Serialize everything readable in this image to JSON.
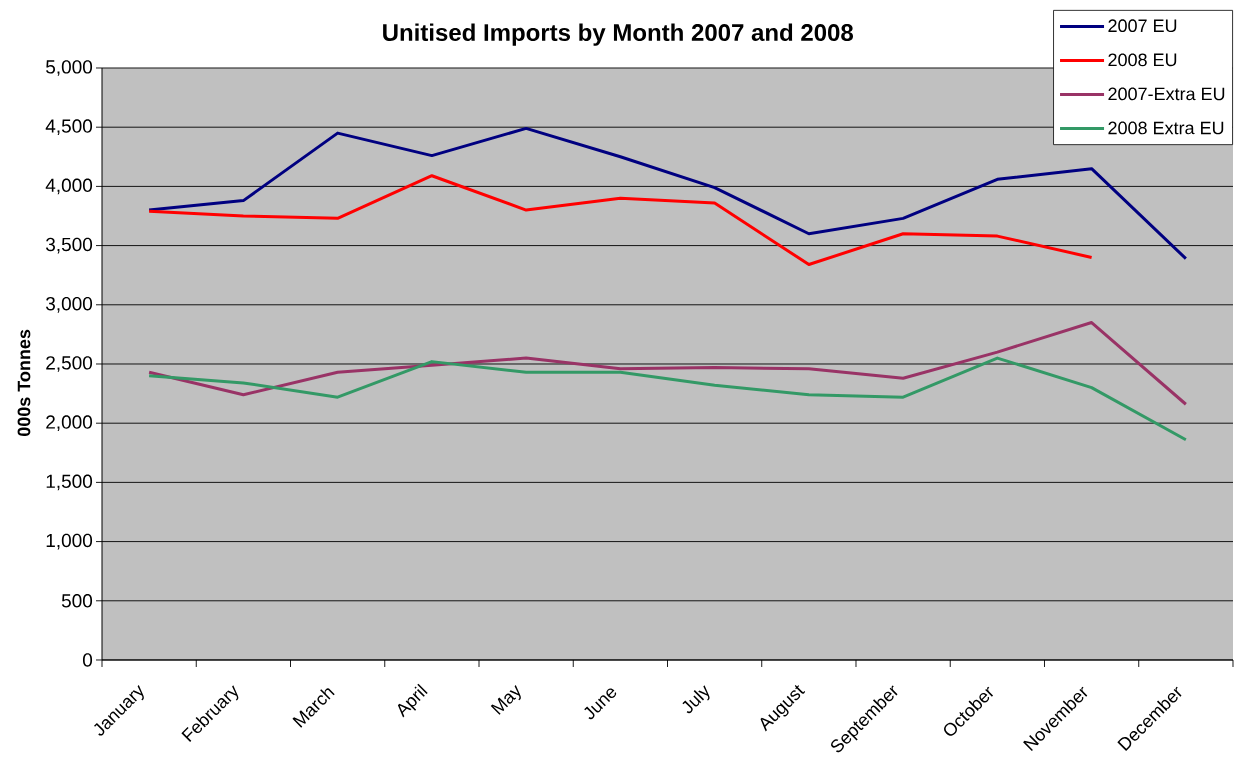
{
  "chart_data": {
    "type": "line",
    "title": "Unitised Imports by Month 2007 and 2008",
    "ylabel": "000s Tonnes",
    "categories": [
      "January",
      "February",
      "March",
      "April",
      "May",
      "June",
      "July",
      "August",
      "September",
      "October",
      "November",
      "December"
    ],
    "series": [
      {
        "name": "2007 EU",
        "color": "#000080",
        "values": [
          3800,
          3880,
          4450,
          4260,
          4490,
          4250,
          3990,
          3600,
          3730,
          4060,
          4150,
          3390
        ]
      },
      {
        "name": "2008 EU",
        "color": "#ff0000",
        "values": [
          3790,
          3750,
          3730,
          4090,
          3800,
          3900,
          3860,
          3340,
          3600,
          3580,
          3400,
          null
        ]
      },
      {
        "name": "2007-Extra EU",
        "color": "#993366",
        "values": [
          2430,
          2240,
          2430,
          2490,
          2550,
          2460,
          2470,
          2460,
          2380,
          2600,
          2850,
          2160
        ]
      },
      {
        "name": "2008 Extra EU",
        "color": "#339966",
        "values": [
          2400,
          2340,
          2220,
          2520,
          2430,
          2430,
          2320,
          2240,
          2220,
          2550,
          2300,
          1860
        ]
      }
    ],
    "ylim": [
      0,
      5000
    ],
    "yticks": [
      0,
      500,
      {
        "value": 1000,
        "label": "1,000"
      },
      {
        "value": 1500,
        "label": "1,500"
      },
      {
        "value": 2000,
        "label": "2,000"
      },
      {
        "value": 2500,
        "label": "2,500"
      },
      {
        "value": 3000,
        "label": "3,000"
      },
      {
        "value": 3500,
        "label": "3,500"
      },
      {
        "value": 4000,
        "label": "4,000"
      },
      {
        "value": 4500,
        "label": "4,500"
      },
      {
        "value": 5000,
        "label": "5,000"
      }
    ],
    "grid": "y",
    "legend": "top right",
    "line_style": "solid",
    "marker": "none"
  }
}
